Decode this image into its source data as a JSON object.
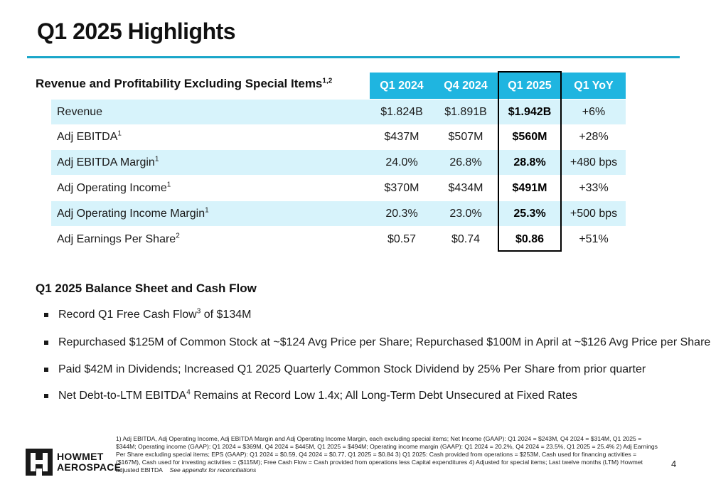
{
  "title": "Q1 2025 Highlights",
  "section1": {
    "heading": "Revenue and Profitability Excluding Special Items",
    "heading_sup": "1,2"
  },
  "table": {
    "columns": [
      "Q1 2024",
      "Q4 2024",
      "Q1 2025",
      "Q1 YoY"
    ],
    "rows": [
      {
        "label": "Revenue",
        "sup": "",
        "values": [
          "$1.824B",
          "$1.891B",
          "$1.942B",
          "+6%"
        ]
      },
      {
        "label": "Adj EBITDA",
        "sup": "1",
        "values": [
          "$437M",
          "$507M",
          "$560M",
          "+28%"
        ]
      },
      {
        "label": "Adj EBITDA Margin",
        "sup": "1",
        "values": [
          "24.0%",
          "26.8%",
          "28.8%",
          "+480 bps"
        ]
      },
      {
        "label": "Adj Operating Income",
        "sup": "1",
        "values": [
          "$370M",
          "$434M",
          "$491M",
          "+33%"
        ]
      },
      {
        "label": "Adj Operating Income Margin",
        "sup": "1",
        "values": [
          "20.3%",
          "23.0%",
          "25.3%",
          "+500 bps"
        ]
      },
      {
        "label": "Adj Earnings Per Share",
        "sup": "2",
        "values": [
          "$0.57",
          "$0.74",
          "$0.86",
          "+51%"
        ]
      }
    ]
  },
  "section2": {
    "heading": "Q1 2025 Balance Sheet and Cash Flow",
    "bullets": [
      {
        "pre": "Record Q1 Free Cash Flow",
        "sup": "3",
        "post": " of $134M"
      },
      {
        "pre": "Repurchased $125M of Common Stock at ~$124 Avg Price per Share; Repurchased $100M in April at ~$126 Avg Price per Share",
        "sup": "",
        "post": ""
      },
      {
        "pre": "Paid $42M in Dividends; Increased Q1 2025 Quarterly Common Stock Dividend by 25% Per Share from prior quarter",
        "sup": "",
        "post": ""
      },
      {
        "pre": "Net Debt-to-LTM EBITDA",
        "sup": "4",
        "post": " Remains at Record Low 1.4x; All Long-Term Debt Unsecured at Fixed Rates"
      }
    ]
  },
  "logo": {
    "line1": "HOWMET",
    "line2": "AEROSPACE"
  },
  "footnotes": {
    "text": "1) Adj EBITDA, Adj Operating Income, Adj EBITDA Margin and Adj Operating Income Margin, each excluding special items; Net Income (GAAP): Q1 2024 = $243M, Q4 2024 = $314M, Q1 2025 = $344M;  Operating income (GAAP): Q1 2024 = $369M,      Q4 2024 = $445M, Q1 2025 = $494M;  Operating income margin (GAAP): Q1 2024 = 20.2%, Q4 2024 = 23.5%, Q1 2025 = 25.4%     2) Adj Earnings Per Share excluding special items; EPS (GAAP):      Q1 2024 = $0.59, Q4 2024 = $0.77, Q1 2025 = $0.84     3) Q1 2025: Cash provided from operations = $253M, Cash used for financing activities = ($167M), Cash used for investing activities = ($115M); Free Cash Flow = Cash provided from operations less Capital expenditures     4) Adjusted for special items; Last twelve months (LTM) Howmet adjusted EBITDA",
    "italic": "See appendix for reconciliations"
  },
  "page_number": "4",
  "colors": {
    "accent": "#1fb5e0",
    "rule": "#1aa6c9",
    "row_shade": "#d7f3fb"
  }
}
